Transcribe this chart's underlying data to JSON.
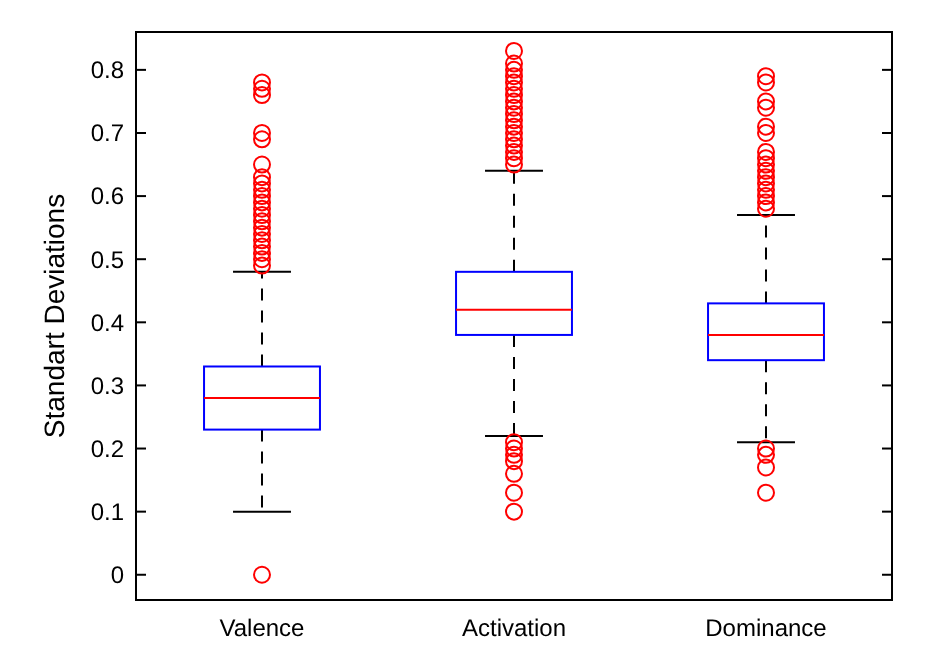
{
  "chart_data": {
    "type": "box",
    "ylabel": "Standart Deviations",
    "categories": [
      "Valence",
      "Activation",
      "Dominance"
    ],
    "ylim": [
      -0.04,
      0.86
    ],
    "yticks": [
      {
        "value": 0,
        "label": "0"
      },
      0.1,
      0.2,
      0.3,
      0.4,
      0.5,
      0.6,
      0.7,
      0.8
    ],
    "marker": "circle",
    "series": [
      {
        "color": "#0000ff",
        "boxes": [
          {
            "low": 0.1,
            "q1": 0.23,
            "median": 0.28,
            "q3": 0.33,
            "high": 0.48,
            "outliers": [
              0,
              0.49,
              0.5,
              0.51,
              0.52,
              0.53,
              0.54,
              0.55,
              0.56,
              0.57,
              0.58,
              0.59,
              0.6,
              0.61,
              0.62,
              0.63,
              0.65,
              0.69,
              0.7,
              0.76,
              0.77,
              0.78
            ]
          },
          {
            "low": 0.22,
            "q1": 0.38,
            "median": 0.42,
            "q3": 0.48,
            "high": 0.64,
            "outliers": [
              0.1,
              0.13,
              0.16,
              0.18,
              0.19,
              0.2,
              0.21,
              0.65,
              0.66,
              0.67,
              0.68,
              0.69,
              0.7,
              0.71,
              0.72,
              0.73,
              0.74,
              0.75,
              0.76,
              0.77,
              0.78,
              0.79,
              0.8,
              0.81,
              0.83
            ]
          },
          {
            "low": 0.21,
            "q1": 0.34,
            "median": 0.38,
            "q3": 0.43,
            "high": 0.57,
            "outliers": [
              0.13,
              0.17,
              0.19,
              0.2,
              0.58,
              0.59,
              0.6,
              0.61,
              0.62,
              0.63,
              0.64,
              0.65,
              0.66,
              0.67,
              0.7,
              0.71,
              0.74,
              0.75,
              0.78,
              0.79
            ]
          }
        ]
      }
    ]
  }
}
